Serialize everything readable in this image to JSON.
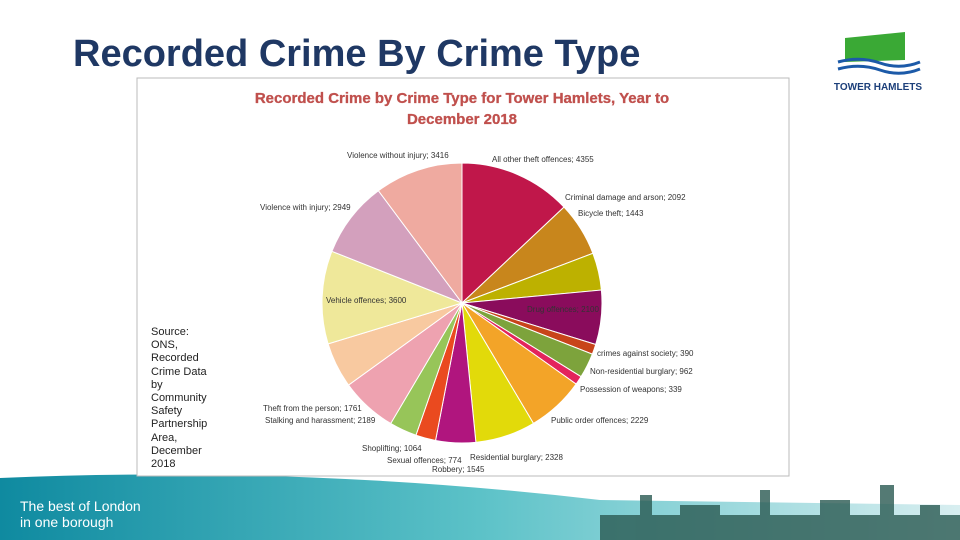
{
  "slide": {
    "title": "Recorded Crime By Crime Type",
    "source": "Source: ONS, Recorded Crime Data by Community Safety Partnership Area, December 2018",
    "footer": [
      "The best of London",
      "in one borough"
    ],
    "logo": "TOWER HAMLETS"
  },
  "chart_data": {
    "type": "pie",
    "title": [
      "Recorded Crime by Crime Type for Tower Hamlets, Year to",
      "December 2018"
    ],
    "categories": [
      "All other theft offences",
      "Criminal damage and arson",
      "Bicycle theft",
      "Drug offences",
      "crimes against society",
      "Non-residential burglary",
      "Possession of weapons",
      "Public order offences",
      "Residential burglary",
      "Robbery",
      "Sexual offences",
      "Shoplifting",
      "Stalking and harassment",
      "Theft from the person",
      "Vehicle offences",
      "Violence with injury",
      "Violence without injury"
    ],
    "values": [
      4355,
      2092,
      1443,
      2100,
      390,
      962,
      339,
      2229,
      2328,
      1545,
      774,
      1064,
      2189,
      1761,
      3600,
      2949,
      3416
    ],
    "colors": [
      "#c0174a",
      "#c8861c",
      "#bdb100",
      "#8a0c5c",
      "#c8441a",
      "#7da33c",
      "#e3245c",
      "#f3a428",
      "#e2da0a",
      "#b0157e",
      "#ea4a1f",
      "#97c559",
      "#eea2b0",
      "#f8c9a0",
      "#efe89a",
      "#d3a0bd",
      "#efaaa0"
    ]
  }
}
